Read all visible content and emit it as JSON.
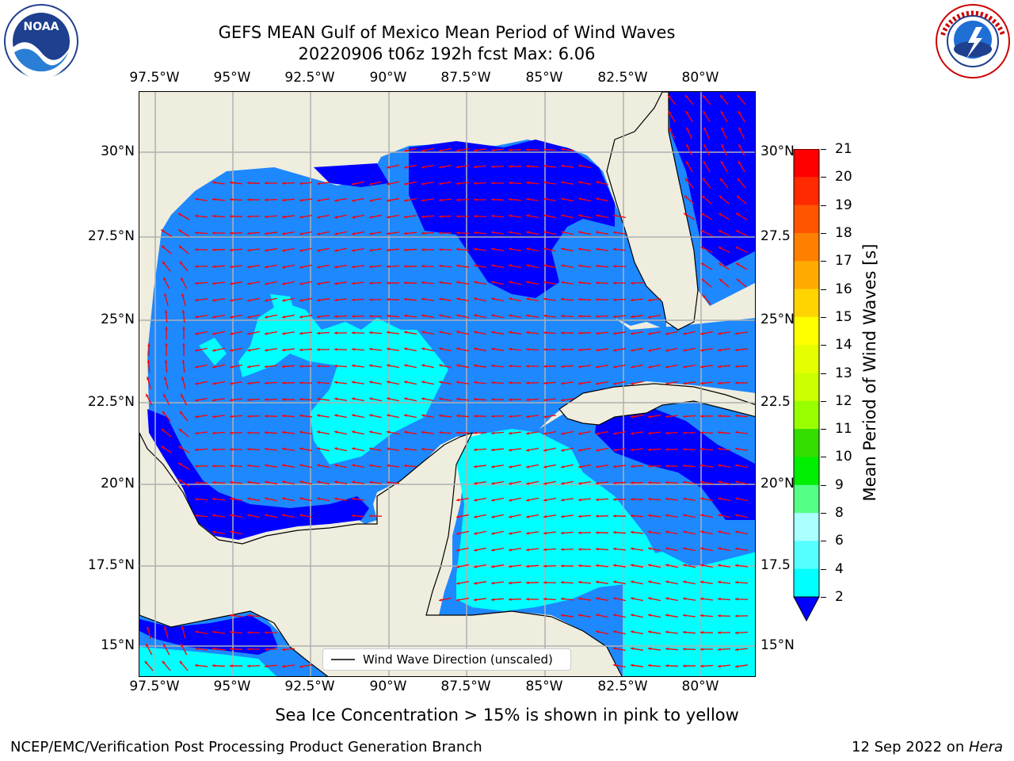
{
  "title_line1": "GEFS MEAN Gulf of Mexico Mean Period of Wind Waves",
  "title_line2": "20220906 t06z 192h fcst   Max: 6.06",
  "lon_ticks": [
    "97.5°W",
    "95°W",
    "92.5°W",
    "90°W",
    "87.5°W",
    "85°W",
    "82.5°W",
    "80°W"
  ],
  "lat_ticks_left": [
    "30°N",
    "27.5°N",
    "25°N",
    "22.5°N",
    "20°N",
    "17.5°N",
    "15°N"
  ],
  "lat_ticks_right": [
    "30°N",
    "27.5",
    "25°N",
    "22.5",
    "20°N",
    "17.5",
    "15°N"
  ],
  "legend_label": "Wind Wave Direction (unscaled)",
  "colorbar": {
    "label": "Mean Period of Wind Waves [s]",
    "ticks": [
      "21",
      "20",
      "19",
      "18",
      "17",
      "16",
      "15",
      "14",
      "13",
      "12",
      "11",
      "10",
      "9",
      "8",
      "6",
      "4",
      "2"
    ],
    "colors": [
      "#ff0000",
      "#ff2a00",
      "#ff5500",
      "#ff7f00",
      "#ffaa00",
      "#ffd400",
      "#ffff00",
      "#e5ff00",
      "#ccff00",
      "#99ff00",
      "#33dd00",
      "#00ee00",
      "#55ff88",
      "#aaffff",
      "#55ffff",
      "#00ffff",
      "#0080ff"
    ],
    "under_color": "#0000ff"
  },
  "colors": {
    "land": "#efedde",
    "water_2_4": "#1e88ff",
    "water_low": "#0000ff",
    "water_4_6": "#00ffff",
    "water_6": "#66ffff",
    "arrow": "#ff0000"
  },
  "sea_ice_note": "Sea Ice Concentration > 15% is shown in pink to yellow",
  "footer_left": "NCEP/EMC/Verification Post Processing Product Generation Branch",
  "footer_right_date": "12 Sep 2022 on ",
  "footer_right_host": "Hera",
  "logos": {
    "noaa": "NOAA",
    "nws": "NATIONAL WEATHER SERVICE"
  }
}
